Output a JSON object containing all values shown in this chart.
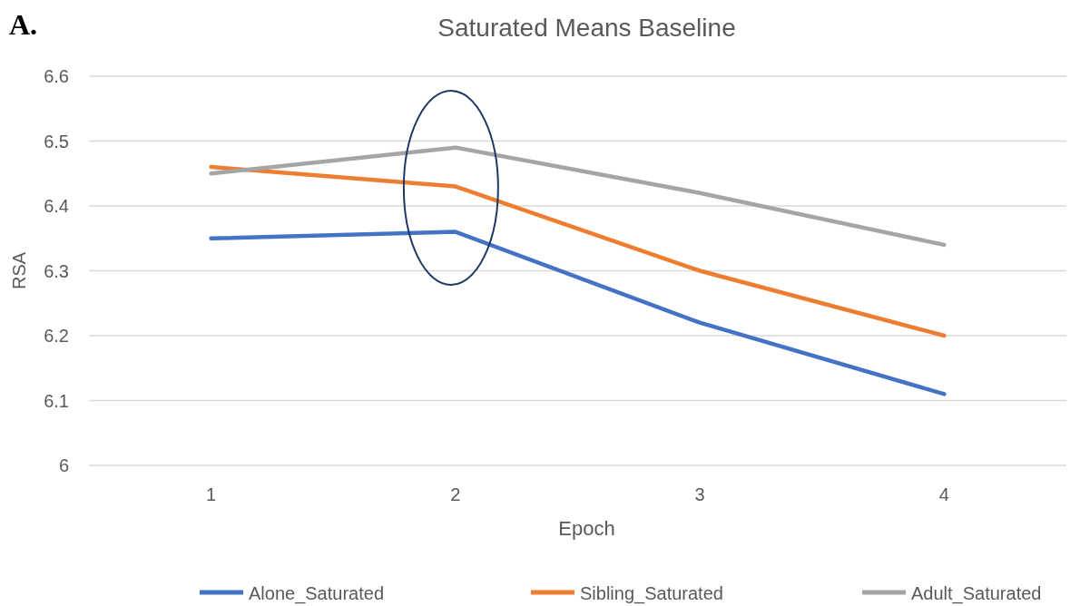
{
  "chart_data": {
    "type": "line",
    "title": "Saturated Means Baseline",
    "xlabel": "Epoch",
    "ylabel": "RSA",
    "annotations": [
      "A."
    ],
    "categories": [
      "1",
      "2",
      "3",
      "4"
    ],
    "series": [
      {
        "name": "Alone_Saturated",
        "color": "#4472c4",
        "values": [
          6.35,
          6.36,
          6.22,
          6.11
        ]
      },
      {
        "name": "Sibling_Saturated",
        "color": "#ed7d31",
        "values": [
          6.46,
          6.43,
          6.3,
          6.2
        ]
      },
      {
        "name": "Adult_Saturated",
        "color": "#a5a5a5",
        "values": [
          6.45,
          6.49,
          6.42,
          6.34
        ]
      }
    ],
    "ylim": [
      6,
      6.6
    ],
    "yticks": [
      6,
      6.1,
      6.2,
      6.3,
      6.4,
      6.5,
      6.6
    ],
    "grid": "y",
    "legend": "bottom",
    "marker": "none",
    "line_style": "solid"
  }
}
